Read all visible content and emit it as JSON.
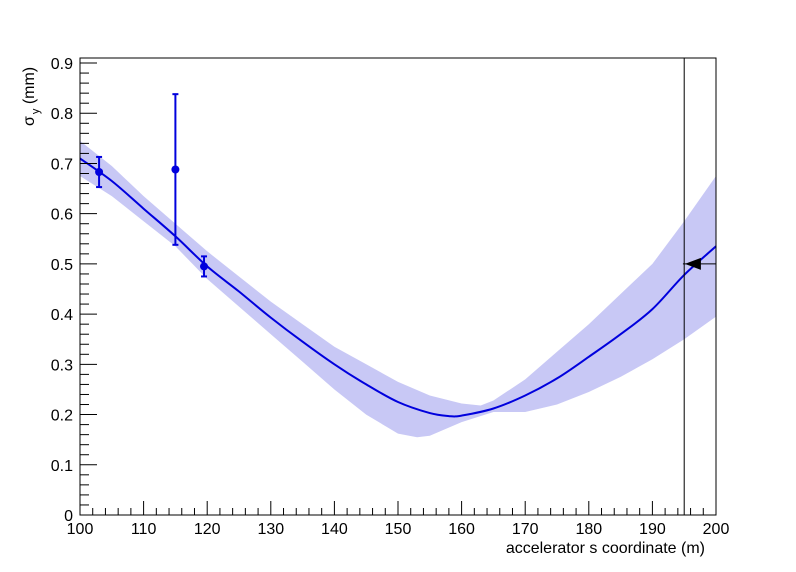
{
  "chart_data": {
    "type": "line",
    "title": "",
    "xlabel": "accelerator s coordinate (m)",
    "ylabel": {
      "main": "σ",
      "sub": "y",
      "unit": " (mm)"
    },
    "xlim": [
      100,
      200
    ],
    "ylim": [
      0,
      0.91
    ],
    "x_ticks": [
      100,
      110,
      120,
      130,
      140,
      150,
      160,
      170,
      180,
      190,
      200
    ],
    "y_ticks": [
      0,
      0.1,
      0.2,
      0.3,
      0.4,
      0.5,
      0.6,
      0.7,
      0.8,
      0.9
    ],
    "y_tick_labels": [
      "0",
      "0.1",
      "0.2",
      "0.3",
      "0.4",
      "0.5",
      "0.6",
      "0.7",
      "0.8",
      "0.9"
    ],
    "grid": false,
    "legend": false,
    "colors": {
      "fit": "#0000dd",
      "band": "#c8c8f5",
      "points": "#0000dd",
      "marker": "#000000"
    },
    "fit_curve": {
      "x": [
        100,
        105,
        110,
        115,
        120,
        125,
        130,
        135,
        140,
        145,
        150,
        155,
        158,
        160,
        165,
        170,
        175,
        180,
        185,
        190,
        195,
        200
      ],
      "y": [
        0.71,
        0.665,
        0.61,
        0.555,
        0.495,
        0.445,
        0.393,
        0.345,
        0.3,
        0.26,
        0.225,
        0.203,
        0.197,
        0.198,
        0.212,
        0.238,
        0.272,
        0.315,
        0.36,
        0.41,
        0.478,
        0.535
      ]
    },
    "band_upper": {
      "x": [
        100,
        105,
        110,
        115,
        120,
        125,
        130,
        135,
        140,
        145,
        150,
        155,
        160,
        163,
        165,
        170,
        175,
        180,
        185,
        190,
        195,
        200
      ],
      "y": [
        0.745,
        0.695,
        0.635,
        0.58,
        0.525,
        0.475,
        0.425,
        0.38,
        0.335,
        0.3,
        0.265,
        0.238,
        0.222,
        0.218,
        0.228,
        0.27,
        0.325,
        0.38,
        0.44,
        0.5,
        0.585,
        0.675
      ]
    },
    "band_lower": {
      "x": [
        100,
        105,
        110,
        115,
        120,
        125,
        130,
        135,
        140,
        145,
        150,
        153,
        155,
        160,
        165,
        170,
        175,
        180,
        185,
        190,
        195,
        200
      ],
      "y": [
        0.675,
        0.635,
        0.585,
        0.535,
        0.47,
        0.415,
        0.36,
        0.305,
        0.25,
        0.2,
        0.162,
        0.155,
        0.158,
        0.185,
        0.205,
        0.205,
        0.22,
        0.245,
        0.275,
        0.31,
        0.35,
        0.395
      ]
    },
    "points": [
      {
        "x": 103,
        "y": 0.683,
        "err": 0.03
      },
      {
        "x": 115,
        "y": 0.688,
        "err": 0.15
      },
      {
        "x": 119.5,
        "y": 0.495,
        "err": 0.02
      }
    ],
    "vertical_line_x": 195,
    "marker": {
      "x": 197,
      "y": 0.5
    }
  }
}
